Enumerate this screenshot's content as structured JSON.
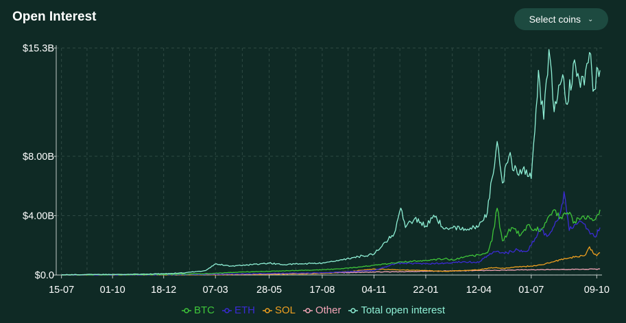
{
  "header": {
    "title": "Open Interest",
    "select_label": "Select coins",
    "select_icon": "chevron-down-icon"
  },
  "colors": {
    "background": "#0f2a25",
    "button": "#1d4a40",
    "grid": "#2f4a44",
    "BTC": "#3fc63a",
    "ETH": "#3b2bd6",
    "SOL": "#f0a020",
    "Other": "#f4a6b8",
    "Total": "#8ff0d6"
  },
  "chart_data": {
    "type": "line",
    "title": "",
    "xlabel": "",
    "ylabel": "",
    "x_ticks": [
      "15-07",
      "01-10",
      "18-12",
      "07-03",
      "28-05",
      "17-08",
      "04-11",
      "22-01",
      "12-04",
      "01-07",
      "09-10"
    ],
    "y_ticks": [
      "$0.0",
      "$4.00B",
      "$8.00B",
      "$15.3B"
    ],
    "y_tick_values": [
      0,
      4.0,
      8.0,
      15.3
    ],
    "ylim": [
      0,
      15.3
    ],
    "y_unit": "$B",
    "grid": true,
    "legend_position": "bottom",
    "x_dates": [
      "2022-07-15",
      "2022-10-01",
      "2022-12-18",
      "2023-03-07",
      "2023-05-28",
      "2023-08-17",
      "2023-11-04",
      "2024-01-22",
      "2024-04-12",
      "2024-07-01",
      "2024-10-09"
    ],
    "series": [
      {
        "name": "BTC",
        "points": [
          [
            "2022-07-15",
            0.01
          ],
          [
            "2022-10-01",
            0.02
          ],
          [
            "2022-12-18",
            0.04
          ],
          [
            "2023-02-15",
            0.08
          ],
          [
            "2023-03-07",
            0.12
          ],
          [
            "2023-04-15",
            0.2
          ],
          [
            "2023-05-28",
            0.25
          ],
          [
            "2023-07-01",
            0.3
          ],
          [
            "2023-08-17",
            0.35
          ],
          [
            "2023-09-20",
            0.45
          ],
          [
            "2023-10-15",
            0.55
          ],
          [
            "2023-11-04",
            0.65
          ],
          [
            "2023-11-25",
            0.75
          ],
          [
            "2023-12-10",
            0.85
          ],
          [
            "2023-12-28",
            0.9
          ],
          [
            "2024-01-10",
            0.95
          ],
          [
            "2024-01-22",
            1.0
          ],
          [
            "2024-02-05",
            1.05
          ],
          [
            "2024-02-20",
            1.1
          ],
          [
            "2024-03-05",
            1.0
          ],
          [
            "2024-03-20",
            1.2
          ],
          [
            "2024-04-12",
            1.35
          ],
          [
            "2024-04-25",
            1.5
          ],
          [
            "2024-05-02",
            2.3
          ],
          [
            "2024-05-10",
            4.5
          ],
          [
            "2024-05-18",
            2.3
          ],
          [
            "2024-06-01",
            3.2
          ],
          [
            "2024-06-15",
            2.7
          ],
          [
            "2024-06-28",
            3.4
          ],
          [
            "2024-07-05",
            3.0
          ],
          [
            "2024-07-20",
            3.2
          ],
          [
            "2024-08-05",
            4.4
          ],
          [
            "2024-08-15",
            3.9
          ],
          [
            "2024-08-25",
            4.2
          ],
          [
            "2024-09-05",
            3.6
          ],
          [
            "2024-09-15",
            3.8
          ],
          [
            "2024-09-25",
            4.0
          ],
          [
            "2024-10-05",
            3.7
          ],
          [
            "2024-10-09",
            4.0
          ],
          [
            "2024-10-14",
            4.4
          ]
        ]
      },
      {
        "name": "ETH",
        "points": [
          [
            "2022-07-15",
            0.0
          ],
          [
            "2022-10-01",
            0.01
          ],
          [
            "2022-12-18",
            0.02
          ],
          [
            "2023-03-07",
            0.05
          ],
          [
            "2023-05-28",
            0.1
          ],
          [
            "2023-08-17",
            0.15
          ],
          [
            "2023-11-04",
            0.3
          ],
          [
            "2023-11-25",
            0.6
          ],
          [
            "2023-12-10",
            0.8
          ],
          [
            "2024-01-22",
            0.75
          ],
          [
            "2024-02-20",
            0.8
          ],
          [
            "2024-03-20",
            0.9
          ],
          [
            "2024-04-12",
            0.85
          ],
          [
            "2024-04-25",
            1.3
          ],
          [
            "2024-05-10",
            1.6
          ],
          [
            "2024-05-25",
            1.5
          ],
          [
            "2024-06-10",
            1.7
          ],
          [
            "2024-06-25",
            1.6
          ],
          [
            "2024-07-01",
            2.0
          ],
          [
            "2024-07-15",
            3.1
          ],
          [
            "2024-07-25",
            2.6
          ],
          [
            "2024-08-05",
            3.3
          ],
          [
            "2024-08-15",
            4.3
          ],
          [
            "2024-08-20",
            5.6
          ],
          [
            "2024-08-28",
            3.0
          ],
          [
            "2024-09-05",
            3.4
          ],
          [
            "2024-09-15",
            3.6
          ],
          [
            "2024-09-25",
            3.1
          ],
          [
            "2024-10-05",
            2.6
          ],
          [
            "2024-10-09",
            2.7
          ],
          [
            "2024-10-14",
            3.2
          ]
        ]
      },
      {
        "name": "SOL",
        "points": [
          [
            "2022-07-15",
            0.0
          ],
          [
            "2022-12-18",
            0.01
          ],
          [
            "2023-03-07",
            0.02
          ],
          [
            "2023-05-28",
            0.05
          ],
          [
            "2023-08-17",
            0.1
          ],
          [
            "2023-10-01",
            0.25
          ],
          [
            "2023-11-04",
            0.4
          ],
          [
            "2023-12-10",
            0.35
          ],
          [
            "2024-01-22",
            0.3
          ],
          [
            "2024-02-20",
            0.25
          ],
          [
            "2024-03-20",
            0.3
          ],
          [
            "2024-04-12",
            0.35
          ],
          [
            "2024-05-01",
            0.5
          ],
          [
            "2024-05-20",
            0.45
          ],
          [
            "2024-06-10",
            0.55
          ],
          [
            "2024-07-01",
            0.6
          ],
          [
            "2024-07-20",
            0.7
          ],
          [
            "2024-08-05",
            0.9
          ],
          [
            "2024-08-20",
            1.1
          ],
          [
            "2024-09-05",
            1.2
          ],
          [
            "2024-09-20",
            1.3
          ],
          [
            "2024-09-28",
            1.9
          ],
          [
            "2024-10-05",
            1.4
          ],
          [
            "2024-10-09",
            1.3
          ],
          [
            "2024-10-14",
            1.5
          ]
        ]
      },
      {
        "name": "Other",
        "points": [
          [
            "2022-07-15",
            0.0
          ],
          [
            "2022-12-18",
            0.01
          ],
          [
            "2023-03-07",
            0.04
          ],
          [
            "2023-05-28",
            0.08
          ],
          [
            "2023-08-17",
            0.12
          ],
          [
            "2023-11-04",
            0.2
          ],
          [
            "2024-01-22",
            0.25
          ],
          [
            "2024-04-12",
            0.3
          ],
          [
            "2024-07-01",
            0.35
          ],
          [
            "2024-10-14",
            0.4
          ]
        ]
      },
      {
        "name": "Total open interest",
        "points": [
          [
            "2022-07-15",
            0.02
          ],
          [
            "2022-10-01",
            0.04
          ],
          [
            "2022-12-18",
            0.08
          ],
          [
            "2023-01-20",
            0.15
          ],
          [
            "2023-02-20",
            0.3
          ],
          [
            "2023-03-07",
            0.75
          ],
          [
            "2023-04-01",
            0.6
          ],
          [
            "2023-05-01",
            0.7
          ],
          [
            "2023-05-28",
            0.8
          ],
          [
            "2023-06-20",
            0.7
          ],
          [
            "2023-07-15",
            0.75
          ],
          [
            "2023-08-17",
            0.8
          ],
          [
            "2023-09-10",
            0.95
          ],
          [
            "2023-10-05",
            1.2
          ],
          [
            "2023-11-04",
            1.4
          ],
          [
            "2023-11-20",
            2.2
          ],
          [
            "2023-12-05",
            2.8
          ],
          [
            "2023-12-15",
            4.5
          ],
          [
            "2023-12-22",
            3.2
          ],
          [
            "2024-01-05",
            3.8
          ],
          [
            "2024-01-22",
            3.3
          ],
          [
            "2024-02-05",
            3.9
          ],
          [
            "2024-02-20",
            3.1
          ],
          [
            "2024-03-05",
            3.3
          ],
          [
            "2024-03-20",
            3.0
          ],
          [
            "2024-04-05",
            3.2
          ],
          [
            "2024-04-12",
            3.3
          ],
          [
            "2024-04-25",
            4.2
          ],
          [
            "2024-05-02",
            6.5
          ],
          [
            "2024-05-10",
            9.0
          ],
          [
            "2024-05-18",
            6.2
          ],
          [
            "2024-05-28",
            8.0
          ],
          [
            "2024-06-10",
            6.8
          ],
          [
            "2024-06-20",
            7.3
          ],
          [
            "2024-07-01",
            6.5
          ],
          [
            "2024-07-12",
            13.8
          ],
          [
            "2024-07-20",
            10.5
          ],
          [
            "2024-07-28",
            15.2
          ],
          [
            "2024-08-05",
            11.0
          ],
          [
            "2024-08-12",
            12.8
          ],
          [
            "2024-08-18",
            13.5
          ],
          [
            "2024-08-25",
            11.5
          ],
          [
            "2024-09-05",
            14.5
          ],
          [
            "2024-09-12",
            13.2
          ],
          [
            "2024-09-20",
            12.8
          ],
          [
            "2024-09-28",
            15.0
          ],
          [
            "2024-10-05",
            12.5
          ],
          [
            "2024-10-09",
            14.0
          ],
          [
            "2024-10-14",
            13.8
          ]
        ]
      }
    ]
  },
  "legend": [
    {
      "label": "BTC",
      "color": "#3fc63a"
    },
    {
      "label": "ETH",
      "color": "#3b2bd6"
    },
    {
      "label": "SOL",
      "color": "#f0a020"
    },
    {
      "label": "Other",
      "color": "#f4a6b8"
    },
    {
      "label": "Total open interest",
      "color": "#8ff0d6"
    }
  ]
}
